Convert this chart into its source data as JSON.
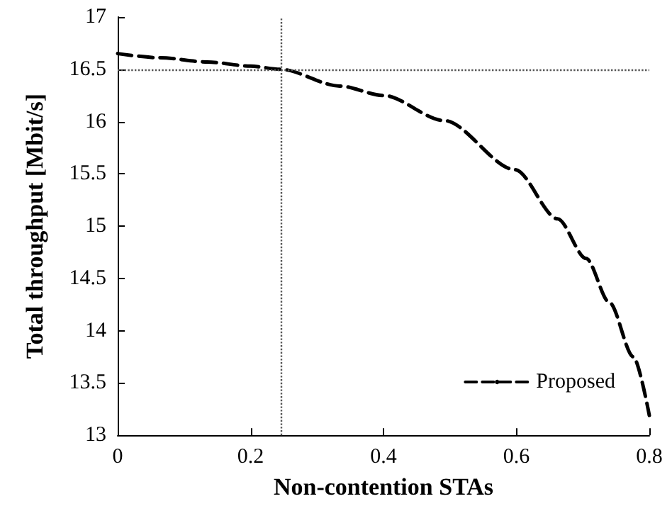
{
  "chart_data": {
    "type": "line",
    "xlabel": "Non-contention STAs",
    "ylabel": "Total throughput [Mbit/s]",
    "x": [
      0,
      0.064,
      0.135,
      0.2,
      0.245,
      0.334,
      0.4,
      0.491,
      0.598,
      0.662,
      0.705,
      0.74,
      0.776,
      0.8
    ],
    "series": [
      {
        "name": "Proposed",
        "color": "#000000",
        "values": [
          16.65,
          16.61,
          16.57,
          16.53,
          16.5,
          16.34,
          16.25,
          16.01,
          15.54,
          15.07,
          14.69,
          14.27,
          13.75,
          13.19
        ]
      }
    ],
    "xlim": [
      0,
      0.8
    ],
    "xticks": [
      0,
      0.2,
      0.4,
      0.6,
      0.8
    ],
    "ylim": [
      13,
      17
    ],
    "yticks": [
      13,
      13.5,
      14,
      14.5,
      15,
      15.5,
      16,
      16.5,
      17
    ],
    "ref_lines": [
      {
        "axis": "y",
        "value": 16.5,
        "label": null,
        "color": "#555555",
        "line_style": "dotted"
      },
      {
        "axis": "x",
        "value": 0.245,
        "label": null,
        "color": "#555555",
        "line_style": "dotted"
      }
    ],
    "legend": "bottom right",
    "marker": "none",
    "line_style": "dashed",
    "grid": false
  }
}
